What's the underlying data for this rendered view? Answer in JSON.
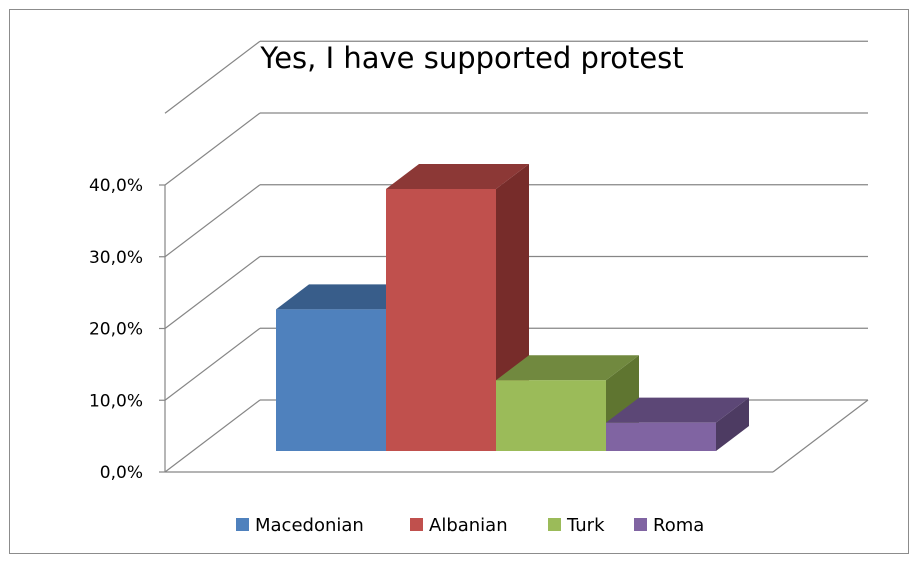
{
  "chart_data": {
    "type": "bar",
    "title": "Yes, I have supported protest",
    "categories": [
      "Macedonian",
      "Albanian",
      "Turk",
      "Roma"
    ],
    "values": [
      20.0,
      37.0,
      10.0,
      4.0
    ],
    "y_ticks": [
      "0,0%",
      "10,0%",
      "20,0%",
      "30,0%",
      "40,0%"
    ],
    "ylim": [
      0,
      40
    ],
    "grid": true,
    "three_d": true,
    "legend_position": "bottom",
    "colors": {
      "front": [
        "#4f81bd",
        "#c0504d",
        "#9bbb59",
        "#8064a2"
      ],
      "top": [
        "#385d8a",
        "#8c3836",
        "#71893f",
        "#5c4776"
      ],
      "side": [
        "#2c4d75",
        "#772c2a",
        "#5f7530",
        "#4d3b62"
      ]
    }
  }
}
